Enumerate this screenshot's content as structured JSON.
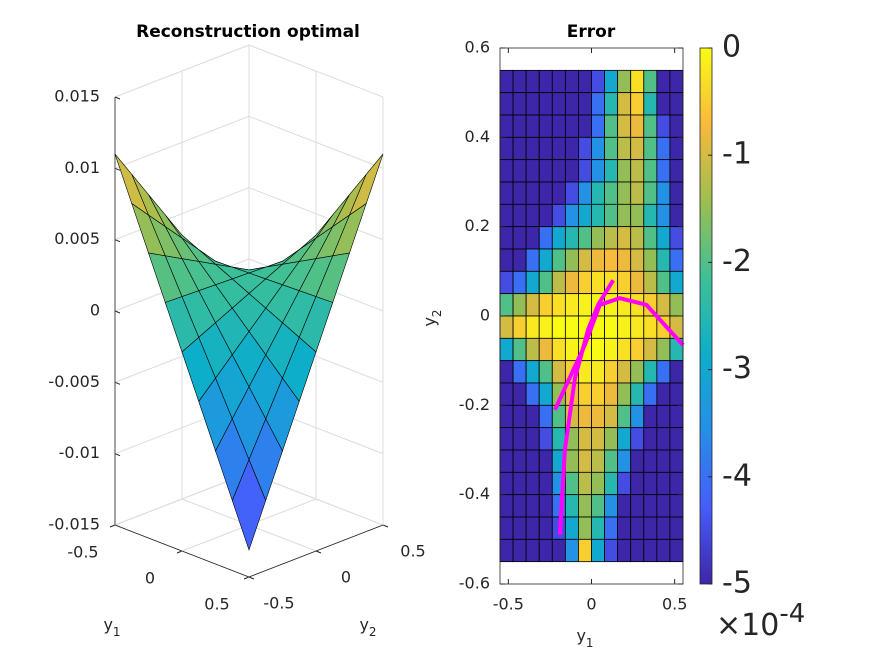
{
  "chart_data": [
    {
      "type": "surface",
      "title": "Reconstruction optimal",
      "xlabel": {
        "base": "y",
        "sub": "1"
      },
      "ylabel": {
        "base": "y",
        "sub": "2"
      },
      "x": [
        -0.5,
        -0.375,
        -0.25,
        -0.125,
        0,
        0.125,
        0.25,
        0.375,
        0.5
      ],
      "y": [
        -0.5,
        -0.375,
        -0.25,
        -0.125,
        0,
        0.125,
        0.25,
        0.375,
        0.5
      ],
      "z": [
        [
          0.011001,
          0.009126,
          0.007251,
          0.005376,
          0.003501,
          0.001626,
          -0.000249,
          -0.002124,
          -0.003999
        ],
        [
          0.007988,
          0.006724,
          0.00546,
          0.004196,
          0.002932,
          0.001668,
          0.000404,
          -0.00086,
          -0.002124
        ],
        [
          0.004975,
          0.004322,
          0.003669,
          0.003016,
          0.002363,
          0.00171,
          0.001057,
          0.000404,
          -0.000249
        ],
        [
          0.001962,
          0.00192,
          0.001878,
          0.001836,
          0.001794,
          0.001752,
          0.00171,
          0.001668,
          0.001626
        ],
        [
          -0.001051,
          -0.000482,
          8.7e-05,
          0.000656,
          0.001225,
          0.001794,
          0.002363,
          0.002932,
          0.003501
        ],
        [
          -0.004064,
          -0.002884,
          -0.001704,
          -0.000524,
          0.000656,
          0.001836,
          0.003016,
          0.004196,
          0.005376
        ],
        [
          -0.007077,
          -0.005286,
          -0.003495,
          -0.001704,
          8.7e-05,
          0.001878,
          0.003669,
          0.00546,
          0.007251
        ],
        [
          -0.01009,
          -0.007688,
          -0.005286,
          -0.002884,
          -0.000482,
          0.00192,
          0.004322,
          0.006724,
          0.009126
        ],
        [
          -0.013103,
          -0.01009,
          -0.007077,
          -0.004064,
          -0.001051,
          0.001962,
          0.004975,
          0.007988,
          0.011001
        ]
      ],
      "xlim": [
        -0.5,
        0.5
      ],
      "ylim": [
        -0.5,
        0.5
      ],
      "zlim": [
        -0.015,
        0.015
      ],
      "xticks": [
        -0.5,
        0,
        0.5
      ],
      "yticks": [
        -0.5,
        0,
        0.5
      ],
      "zticks": [
        0.015,
        0.01,
        0.005,
        0,
        -0.005,
        -0.01,
        -0.015
      ],
      "colormap": "parula",
      "grid": true
    },
    {
      "type": "heatmap",
      "title": "Error",
      "xlabel": {
        "base": "y",
        "sub": "1"
      },
      "ylabel": {
        "base": "y",
        "sub": "2"
      },
      "xbins": [
        -0.55,
        -0.4714,
        -0.3929,
        -0.3143,
        -0.2357,
        -0.1571,
        -0.0786,
        0,
        0.0786,
        0.1571,
        0.2357,
        0.3143,
        0.3929,
        0.4714,
        0.55
      ],
      "ybins": [
        0.55,
        0.5,
        0.45,
        0.4,
        0.35,
        0.3,
        0.25,
        0.2,
        0.15,
        0.1,
        0.05,
        0,
        -0.05,
        -0.1,
        -0.15,
        -0.2,
        -0.25,
        -0.3,
        -0.35,
        -0.4,
        -0.45,
        -0.5,
        -0.55
      ],
      "z": [
        [
          -5,
          -5,
          -5,
          -5,
          -5,
          -5,
          -5,
          -4.5,
          -3,
          -1.5,
          -0.3,
          -2,
          -5,
          -5
        ],
        [
          -5,
          -5,
          -5,
          -5,
          -5,
          -5,
          -5,
          -4,
          -2.5,
          -1,
          -0.5,
          -2.5,
          -5,
          -5
        ],
        [
          -5,
          -5,
          -5,
          -5,
          -5,
          -5,
          -5,
          -4,
          -2,
          -1,
          -0.8,
          -2,
          -4.5,
          -5
        ],
        [
          -5,
          -5,
          -5,
          -5,
          -5,
          -5,
          -4.5,
          -3.5,
          -2,
          -1.2,
          -1,
          -2,
          -4,
          -5
        ],
        [
          -5,
          -5,
          -5,
          -5,
          -5,
          -5,
          -4.5,
          -3.5,
          -2.5,
          -1.5,
          -1.2,
          -2,
          -4,
          -5
        ],
        [
          -5,
          -5,
          -5,
          -5,
          -5,
          -4.5,
          -3.5,
          -2.5,
          -2,
          -1.5,
          -1.2,
          -2,
          -3.5,
          -5
        ],
        [
          -5,
          -5,
          -5,
          -5,
          -4.5,
          -3.5,
          -3,
          -2.5,
          -2,
          -1.5,
          -1.5,
          -2.5,
          -3.5,
          -5
        ],
        [
          -5,
          -5,
          -5,
          -4,
          -3,
          -2.5,
          -2,
          -1.5,
          -1.2,
          -1,
          -1.2,
          -2,
          -3,
          -4.5
        ],
        [
          -5,
          -5,
          -4,
          -3,
          -2,
          -1.5,
          -1,
          -0.8,
          -0.7,
          -0.8,
          -1,
          -1.5,
          -2.5,
          -4
        ],
        [
          -4.5,
          -4,
          -3,
          -2,
          -1.2,
          -0.8,
          -0.5,
          -0.3,
          -0.3,
          -0.5,
          -0.8,
          -1.2,
          -2,
          -3
        ],
        [
          -2,
          -1.5,
          -1,
          -0.5,
          -0.3,
          -0.2,
          -0.1,
          -0.1,
          -0.1,
          -0.2,
          -0.3,
          -0.5,
          -1,
          -1.5
        ],
        [
          -1,
          -0.5,
          -0.2,
          -0.1,
          0,
          0,
          0,
          0,
          0,
          -0.1,
          -0.2,
          -0.3,
          -0.5,
          -1
        ],
        [
          -3,
          -2,
          -1.2,
          -0.8,
          -0.3,
          -0.1,
          0,
          0,
          -0.1,
          -0.3,
          -0.5,
          -1,
          -1.5,
          -2.5
        ],
        [
          -5,
          -4,
          -3,
          -2,
          -1,
          -0.5,
          -0.2,
          -0.2,
          -0.5,
          -1,
          -1.5,
          -2.5,
          -4,
          -5
        ],
        [
          -5,
          -5,
          -4,
          -3,
          -1.5,
          -0.8,
          -0.5,
          -0.5,
          -0.8,
          -1.5,
          -2.5,
          -4,
          -5,
          -5
        ],
        [
          -5,
          -5,
          -5,
          -4,
          -2,
          -1,
          -0.8,
          -0.8,
          -1,
          -2,
          -3.5,
          -5,
          -5,
          -5
        ],
        [
          -5,
          -5,
          -5,
          -4.5,
          -2.5,
          -1.5,
          -1,
          -1,
          -1.5,
          -3,
          -4.5,
          -5,
          -5,
          -5
        ],
        [
          -5,
          -5,
          -5,
          -5,
          -3,
          -1.5,
          -1,
          -1.2,
          -2,
          -3.5,
          -5,
          -5,
          -5,
          -5
        ],
        [
          -5,
          -5,
          -5,
          -5,
          -3.5,
          -2,
          -1.2,
          -1.5,
          -2.5,
          -4.5,
          -5,
          -5,
          -5,
          -5
        ],
        [
          -5,
          -5,
          -5,
          -5,
          -4,
          -2.5,
          -1.5,
          -2,
          -3.5,
          -5,
          -5,
          -5,
          -5,
          -5
        ],
        [
          -5,
          -5,
          -5,
          -5,
          -4.5,
          -3,
          -1.5,
          -2.5,
          -4,
          -5,
          -5,
          -5,
          -5,
          -5
        ],
        [
          -5,
          -5,
          -5,
          -5,
          -5,
          -3.5,
          -0.5,
          -3,
          -4.5,
          -5,
          -5,
          -5,
          -5,
          -5
        ]
      ],
      "xlim": [
        -0.55,
        0.55
      ],
      "ylim": [
        -0.6,
        0.6
      ],
      "xticks": [
        -0.5,
        0,
        0.5
      ],
      "yticks": [
        0.6,
        0.4,
        0.2,
        0,
        -0.2,
        -0.4,
        -0.6
      ],
      "clim": [
        -5,
        0
      ],
      "cticks": [
        0,
        -1,
        -2,
        -3,
        -4,
        -5
      ],
      "colorbar_scale": {
        "base": "×10",
        "exp": "-4"
      },
      "colormap": "parula",
      "overlay": [
        {
          "color": "#ff00ff",
          "x": [
            -0.19,
            -0.16,
            -0.1,
            -0.02,
            0.04,
            0.13
          ],
          "y": [
            -0.49,
            -0.3,
            -0.14,
            -0.03,
            0.025,
            0.08
          ]
        },
        {
          "color": "#ff00ff",
          "x": [
            -0.22,
            -0.04,
            0.05,
            0.17,
            0.33,
            0.55
          ],
          "y": [
            -0.21,
            -0.065,
            0.025,
            0.04,
            0.025,
            -0.065
          ]
        }
      ]
    }
  ]
}
